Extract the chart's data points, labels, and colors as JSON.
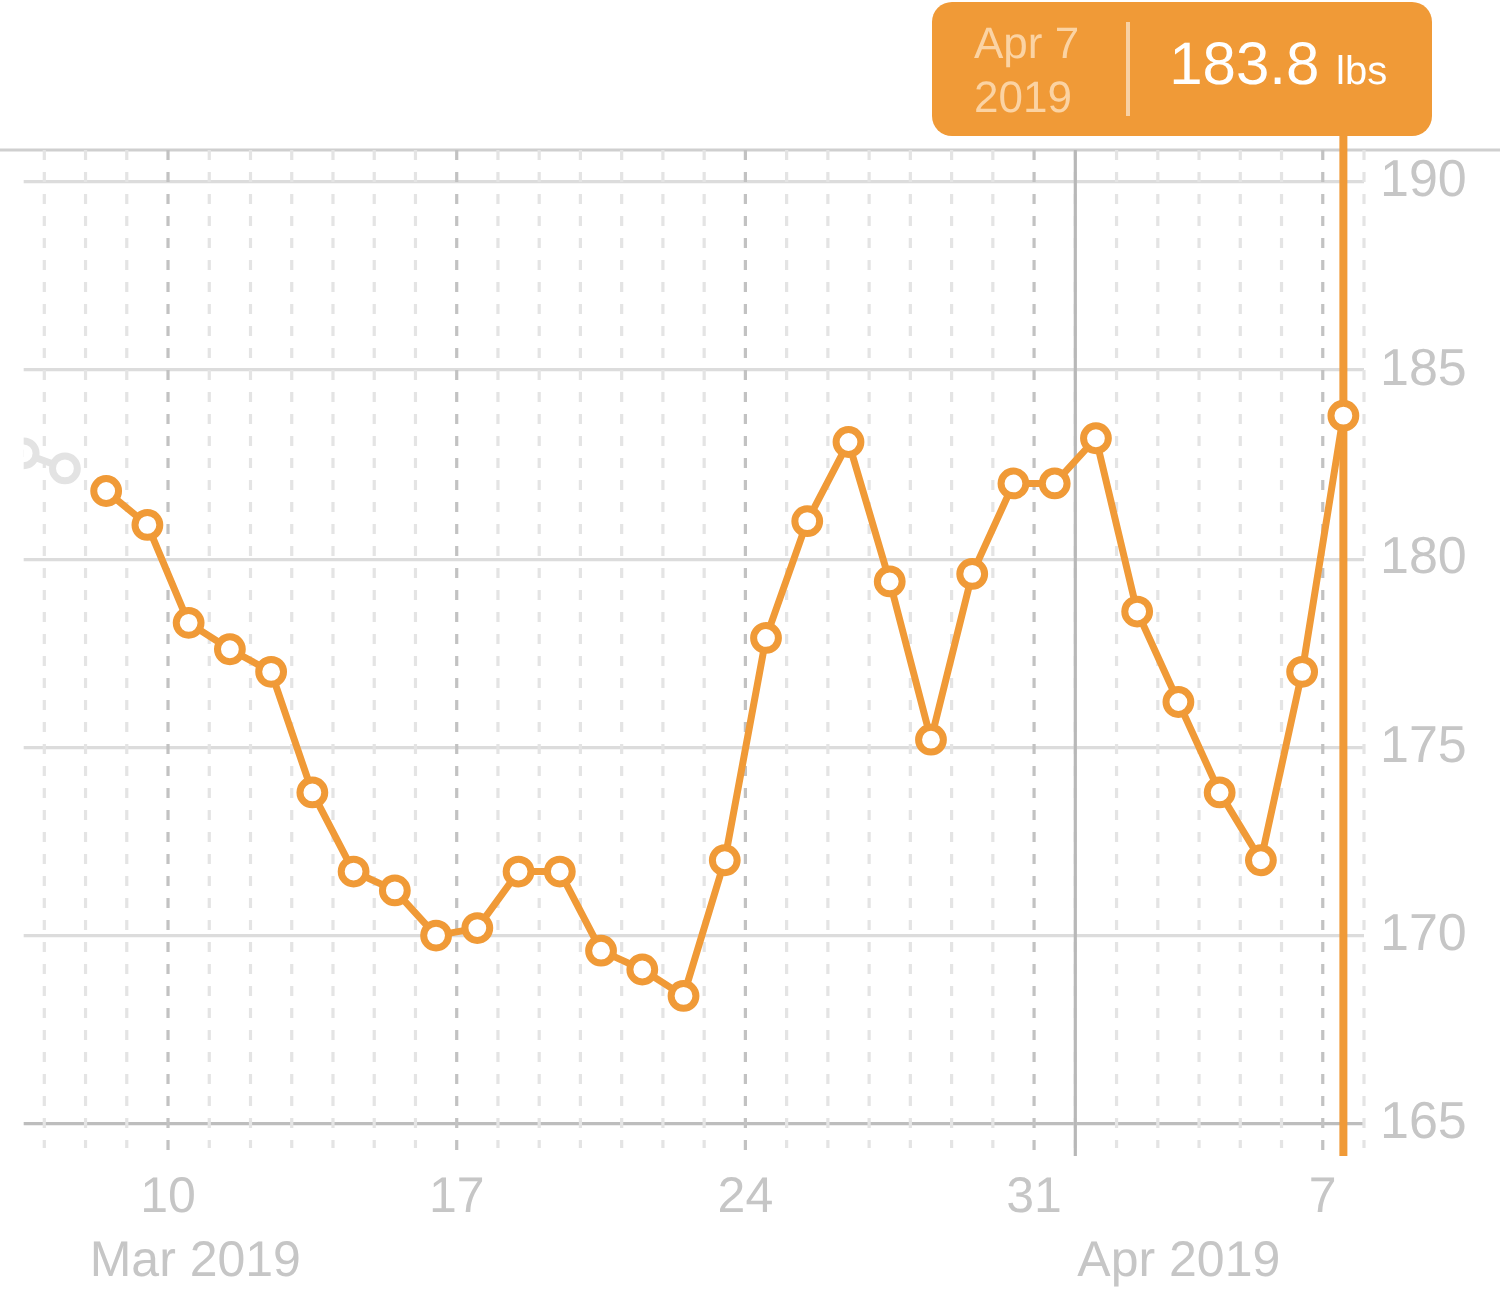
{
  "chart_data": {
    "type": "line",
    "series": [
      {
        "color": "#e3e3e3",
        "x": [
          "2019-03-06T12:00",
          "2019-03-07T12:00"
        ],
        "values": [
          182.8,
          182.4
        ]
      },
      {
        "color": "#f09a37",
        "x": [
          "2019-03-08T12:00",
          "2019-03-09T12:00",
          "2019-03-10T12:00",
          "2019-03-11T12:00",
          "2019-03-12T12:00",
          "2019-03-13T12:00",
          "2019-03-14T12:00",
          "2019-03-15T12:00",
          "2019-03-16T12:00",
          "2019-03-17T12:00",
          "2019-03-18T12:00",
          "2019-03-19T12:00",
          "2019-03-20T12:00",
          "2019-03-21T12:00",
          "2019-03-22T12:00",
          "2019-03-23T12:00",
          "2019-03-24T12:00",
          "2019-03-25T12:00",
          "2019-03-26T12:00",
          "2019-03-27T12:00",
          "2019-03-28T12:00",
          "2019-03-29T12:00",
          "2019-03-30T12:00",
          "2019-03-31T12:00",
          "2019-04-01T12:00",
          "2019-04-02T12:00",
          "2019-04-03T12:00",
          "2019-04-04T12:00",
          "2019-04-05T12:00",
          "2019-04-06T12:00",
          "2019-04-07T12:00"
        ],
        "values": [
          181.8,
          180.9,
          178.3,
          177.6,
          177.0,
          173.8,
          171.7,
          171.2,
          170.0,
          170.2,
          171.7,
          171.7,
          169.6,
          169.1,
          168.4,
          172.0,
          177.9,
          181.0,
          183.1,
          179.4,
          175.2,
          179.6,
          182.0,
          182.0,
          183.2,
          178.6,
          176.2,
          173.8,
          172.0,
          177.0,
          183.8
        ]
      }
    ],
    "xlim": [
      "2019-03-06T12:00",
      "2019-04-08"
    ],
    "xticks": [
      {
        "value": "2019-03-07",
        "label": null
      },
      {
        "value": "2019-03-08",
        "label": null
      },
      {
        "value": "2019-03-09",
        "label": null
      },
      {
        "value": "2019-03-10",
        "label": "10"
      },
      {
        "value": "2019-03-11",
        "label": null
      },
      {
        "value": "2019-03-12",
        "label": null
      },
      {
        "value": "2019-03-13",
        "label": null
      },
      {
        "value": "2019-03-14",
        "label": null
      },
      {
        "value": "2019-03-15",
        "label": null
      },
      {
        "value": "2019-03-16",
        "label": null
      },
      {
        "value": "2019-03-17",
        "label": "17"
      },
      {
        "value": "2019-03-18",
        "label": null
      },
      {
        "value": "2019-03-19",
        "label": null
      },
      {
        "value": "2019-03-20",
        "label": null
      },
      {
        "value": "2019-03-21",
        "label": null
      },
      {
        "value": "2019-03-22",
        "label": null
      },
      {
        "value": "2019-03-23",
        "label": null
      },
      {
        "value": "2019-03-24",
        "label": "24"
      },
      {
        "value": "2019-03-25",
        "label": null
      },
      {
        "value": "2019-03-26",
        "label": null
      },
      {
        "value": "2019-03-27",
        "label": null
      },
      {
        "value": "2019-03-28",
        "label": null
      },
      {
        "value": "2019-03-29",
        "label": null
      },
      {
        "value": "2019-03-30",
        "label": null
      },
      {
        "value": "2019-03-31",
        "label": "31"
      },
      {
        "value": "2019-04-01",
        "label": null
      },
      {
        "value": "2019-04-02",
        "label": null
      },
      {
        "value": "2019-04-03",
        "label": null
      },
      {
        "value": "2019-04-04",
        "label": null
      },
      {
        "value": "2019-04-05",
        "label": null
      },
      {
        "value": "2019-04-06",
        "label": null
      },
      {
        "value": "2019-04-07",
        "label": "7"
      },
      {
        "value": "2019-04-08",
        "label": null
      }
    ],
    "ylim": [
      165,
      190.85
    ],
    "yticks": [
      165,
      170,
      175,
      180,
      185,
      190
    ],
    "grid": true,
    "marker": "circle",
    "line_style": "solid",
    "ref_lines": [
      {
        "axis": "x",
        "value": "2019-04-01",
        "label": "Apr 2019",
        "color": "#b8b8b8"
      },
      {
        "axis": "x",
        "value": "2019-04-07T12:00",
        "color": "#f09a37"
      }
    ],
    "annotations": [
      "Mar 2019",
      "Apr 7 2019",
      "183.8 lbs"
    ]
  }
}
